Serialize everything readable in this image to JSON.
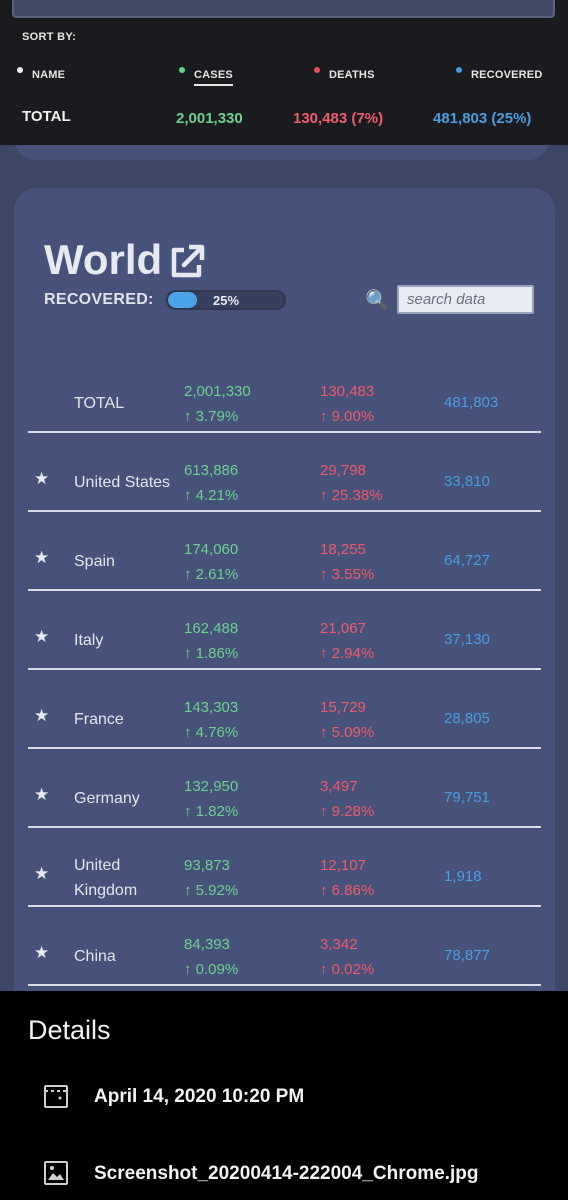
{
  "header": {
    "sort_by": "SORT BY:",
    "sort_options": [
      {
        "label": "NAME",
        "dot": "#f2f2f2",
        "active": false
      },
      {
        "label": "CASES",
        "dot": "#5fd68a",
        "active": true
      },
      {
        "label": "DEATHS",
        "dot": "#ef4d5e",
        "active": false
      },
      {
        "label": "RECOVERED",
        "dot": "#3e9be0",
        "active": false
      }
    ],
    "total_label": "TOTAL",
    "total_cases": "2,001,330",
    "total_deaths": "130,483 (7%)",
    "total_recovered": "481,803 (25%)"
  },
  "colors": {
    "cases": "#6fd08e",
    "deaths": "#ef5b6c",
    "recovered": "#4b9de0",
    "card": "#46527a",
    "background": "#3c4766"
  },
  "world": {
    "title": "World",
    "external_icon": "external-link-icon",
    "recovered_label": "RECOVERED:",
    "recovered_progress": 0.25,
    "recovered_pct_text": "25%",
    "search_icon": "magnifier-icon",
    "search_placeholder": "search data"
  },
  "table": {
    "rows": [
      {
        "star": "",
        "name": "TOTAL",
        "cases": "2,001,330",
        "cases_change": "↑ 3.79%",
        "deaths": "130,483",
        "deaths_change": "↑ 9.00%",
        "recovered": "481,803"
      },
      {
        "star": "★",
        "name": "United States",
        "cases": "613,886",
        "cases_change": "↑ 4.21%",
        "deaths": "29,798",
        "deaths_change": "↑ 25.38%",
        "recovered": "33,810"
      },
      {
        "star": "★",
        "name": "Spain",
        "cases": "174,060",
        "cases_change": "↑ 2.61%",
        "deaths": "18,255",
        "deaths_change": "↑ 3.55%",
        "recovered": "64,727"
      },
      {
        "star": "★",
        "name": "Italy",
        "cases": "162,488",
        "cases_change": "↑ 1.86%",
        "deaths": "21,067",
        "deaths_change": "↑ 2.94%",
        "recovered": "37,130"
      },
      {
        "star": "★",
        "name": "France",
        "cases": "143,303",
        "cases_change": "↑ 4.76%",
        "deaths": "15,729",
        "deaths_change": "↑ 5.09%",
        "recovered": "28,805"
      },
      {
        "star": "★",
        "name": "Germany",
        "cases": "132,950",
        "cases_change": "↑ 1.82%",
        "deaths": "3,497",
        "deaths_change": "↑ 9.28%",
        "recovered": "79,751"
      },
      {
        "star": "★",
        "name": "United Kingdom",
        "name_line1": "United",
        "name_line2": "Kingdom",
        "cases": "93,873",
        "cases_change": "↑ 5.92%",
        "deaths": "12,107",
        "deaths_change": "↑ 6.86%",
        "recovered": "1,918"
      },
      {
        "star": "★",
        "name": "China",
        "cases": "84,393",
        "cases_change": "↑ 0.09%",
        "deaths": "3,342",
        "deaths_change": "↑ 0.02%",
        "recovered": "78,877"
      }
    ]
  },
  "details": {
    "title": "Details",
    "date_icon": "calendar-icon",
    "date": "April 14, 2020 10:20 PM",
    "file_icon": "image-icon",
    "filename": "Screenshot_20200414-222004_Chrome.jpg"
  }
}
